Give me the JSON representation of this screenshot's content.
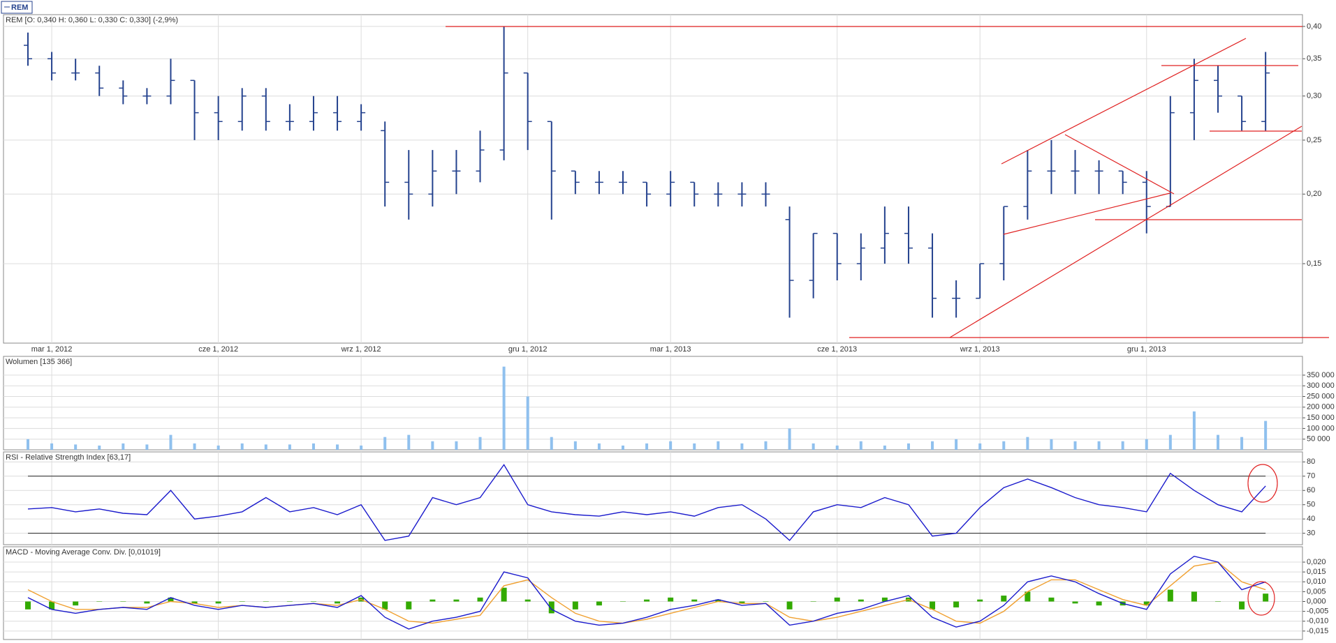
{
  "tab": "REM",
  "chart_data": [
    {
      "type": "ohlc",
      "title": "REM [O: 0,340  H: 0,360  L: 0,330  C: 0,330] (-2,9%)",
      "categories": [
        null,
        "mar 1, 2012",
        null,
        null,
        null,
        null,
        null,
        null,
        "cze 1, 2012",
        null,
        null,
        null,
        null,
        null,
        "wrz 1, 2012",
        null,
        null,
        null,
        null,
        null,
        null,
        "gru 1, 2012",
        null,
        null,
        null,
        null,
        null,
        "mar 1, 2013",
        null,
        null,
        null,
        null,
        null,
        null,
        "cze 1, 2013",
        null,
        null,
        null,
        null,
        null,
        "wrz 1, 2013",
        null,
        null,
        null,
        null,
        null,
        null,
        "gru 1, 2013",
        null,
        null,
        null,
        null,
        null
      ],
      "open": [
        0.37,
        0.35,
        0.33,
        0.33,
        0.31,
        0.3,
        0.3,
        0.32,
        0.28,
        0.27,
        0.3,
        0.27,
        0.27,
        0.28,
        0.27,
        0.26,
        0.21,
        0.2,
        0.22,
        0.22,
        0.24,
        0.33,
        0.27,
        0.22,
        0.21,
        0.21,
        0.21,
        0.2,
        0.21,
        0.2,
        0.2,
        0.2,
        0.18,
        0.14,
        0.17,
        0.15,
        0.16,
        0.17,
        0.16,
        0.13,
        0.13,
        0.15,
        0.19,
        0.22,
        0.22,
        0.22,
        0.22,
        0.21,
        0.19,
        0.28,
        0.32,
        0.3,
        0.27
      ],
      "high": [
        0.39,
        0.36,
        0.35,
        0.34,
        0.32,
        0.31,
        0.35,
        0.32,
        0.3,
        0.31,
        0.31,
        0.29,
        0.3,
        0.3,
        0.29,
        0.27,
        0.24,
        0.24,
        0.24,
        0.26,
        0.4,
        0.33,
        0.27,
        0.22,
        0.22,
        0.22,
        0.21,
        0.22,
        0.21,
        0.21,
        0.21,
        0.21,
        0.19,
        0.17,
        0.17,
        0.17,
        0.19,
        0.19,
        0.17,
        0.14,
        0.15,
        0.19,
        0.24,
        0.25,
        0.24,
        0.23,
        0.22,
        0.22,
        0.3,
        0.35,
        0.34,
        0.3,
        0.36
      ],
      "low": [
        0.34,
        0.32,
        0.32,
        0.3,
        0.29,
        0.29,
        0.29,
        0.25,
        0.25,
        0.26,
        0.26,
        0.26,
        0.26,
        0.26,
        0.26,
        0.19,
        0.18,
        0.19,
        0.2,
        0.21,
        0.23,
        0.24,
        0.18,
        0.2,
        0.2,
        0.2,
        0.19,
        0.19,
        0.19,
        0.19,
        0.19,
        0.19,
        0.12,
        0.13,
        0.14,
        0.14,
        0.15,
        0.15,
        0.12,
        0.12,
        0.13,
        0.14,
        0.18,
        0.2,
        0.2,
        0.2,
        0.2,
        0.17,
        0.19,
        0.25,
        0.28,
        0.26,
        0.26
      ],
      "close": [
        0.35,
        0.33,
        0.33,
        0.31,
        0.3,
        0.3,
        0.32,
        0.28,
        0.27,
        0.3,
        0.27,
        0.27,
        0.28,
        0.27,
        0.28,
        0.21,
        0.2,
        0.22,
        0.22,
        0.24,
        0.33,
        0.27,
        0.22,
        0.21,
        0.21,
        0.21,
        0.2,
        0.21,
        0.2,
        0.2,
        0.2,
        0.2,
        0.14,
        0.17,
        0.15,
        0.16,
        0.17,
        0.16,
        0.13,
        0.13,
        0.15,
        0.19,
        0.22,
        0.22,
        0.22,
        0.22,
        0.21,
        0.19,
        0.28,
        0.32,
        0.3,
        0.27,
        0.33
      ],
      "color": "#24428e",
      "log": true,
      "ylim": [
        0.108,
        0.42
      ],
      "yticks": [
        {
          "value": 0.15,
          "label": "0,15"
        },
        {
          "value": 0.2,
          "label": "0,20"
        },
        {
          "value": 0.25,
          "label": "0,25"
        },
        {
          "value": 0.3,
          "label": "0,30"
        },
        {
          "value": 0.35,
          "label": "0,35"
        },
        {
          "value": 0.4,
          "label": "0,40"
        }
      ],
      "grid": true
    },
    {
      "type": "bar",
      "title": "Wolumen [135 366]",
      "values": [
        50000,
        30000,
        25000,
        20000,
        30000,
        25000,
        70000,
        30000,
        20000,
        30000,
        25000,
        25000,
        30000,
        25000,
        20000,
        60000,
        70000,
        40000,
        40000,
        60000,
        390000,
        250000,
        60000,
        40000,
        30000,
        20000,
        30000,
        40000,
        30000,
        40000,
        30000,
        40000,
        100000,
        30000,
        20000,
        40000,
        20000,
        30000,
        40000,
        50000,
        30000,
        40000,
        60000,
        50000,
        40000,
        40000,
        40000,
        50000,
        70000,
        180000,
        70000,
        60000,
        135366
      ],
      "color": "#8fc0ee",
      "ylim": [
        0,
        438000
      ],
      "yticks": [
        {
          "value": 50000,
          "label": "50 000"
        },
        {
          "value": 100000,
          "label": "100 000"
        },
        {
          "value": 150000,
          "label": "150 000"
        },
        {
          "value": 200000,
          "label": "200 000"
        },
        {
          "value": 250000,
          "label": "250 000"
        },
        {
          "value": 300000,
          "label": "300 000"
        },
        {
          "value": 350000,
          "label": "350 000"
        }
      ],
      "grid": true
    },
    {
      "type": "line",
      "title": "RSI - Relative Strength Index [63,17]",
      "values": [
        47,
        48,
        45,
        47,
        44,
        43,
        60,
        40,
        42,
        45,
        55,
        45,
        48,
        43,
        50,
        25,
        28,
        55,
        50,
        55,
        78,
        50,
        45,
        43,
        42,
        45,
        43,
        45,
        42,
        48,
        50,
        40,
        25,
        45,
        50,
        48,
        55,
        50,
        28,
        30,
        48,
        62,
        68,
        62,
        55,
        50,
        48,
        45,
        72,
        60,
        50,
        45,
        63.17
      ],
      "color": "#1a1acc",
      "levels": [
        70,
        30
      ],
      "ylim": [
        22,
        87
      ],
      "yticks": [
        30,
        40,
        50,
        60,
        70,
        80
      ],
      "grid": true
    },
    {
      "type": "line",
      "title": "MACD - Moving Average Conv. Div. [0,01019]",
      "series": [
        {
          "style": "bar",
          "color": "#33aa00",
          "values": [
            -0.004,
            -0.004,
            -0.002,
            0,
            0,
            -0.001,
            0.002,
            -0.001,
            -0.001,
            0,
            0,
            0,
            0,
            -0.001,
            0.002,
            -0.004,
            -0.004,
            0.001,
            0.001,
            0.002,
            0.007,
            0.001,
            -0.006,
            -0.004,
            -0.002,
            0,
            0.001,
            0.002,
            0.001,
            0.001,
            -0.001,
            0,
            -0.004,
            0,
            0.002,
            0.001,
            0.002,
            0.002,
            -0.004,
            -0.003,
            0.001,
            0.003,
            0.005,
            0.002,
            -0.001,
            -0.002,
            -0.002,
            -0.002,
            0.006,
            0.005,
            0,
            -0.004,
            0.004
          ]
        },
        {
          "style": "line",
          "color": "#f0a030",
          "values": [
            0.006,
            0.0,
            -0.004,
            -0.004,
            -0.003,
            -0.003,
            0.0,
            -0.001,
            -0.003,
            -0.002,
            -0.003,
            -0.002,
            -0.001,
            -0.002,
            0.001,
            -0.004,
            -0.01,
            -0.011,
            -0.009,
            -0.007,
            0.008,
            0.011,
            0.002,
            -0.006,
            -0.01,
            -0.011,
            -0.009,
            -0.006,
            -0.003,
            0.0,
            -0.001,
            -0.001,
            -0.008,
            -0.01,
            -0.008,
            -0.005,
            -0.002,
            0.001,
            -0.004,
            -0.01,
            -0.011,
            -0.005,
            0.005,
            0.011,
            0.011,
            0.006,
            0.001,
            -0.002,
            0.008,
            0.018,
            0.02,
            0.01,
            0.006
          ]
        },
        {
          "style": "line",
          "color": "#1a1acc",
          "values": [
            0.002,
            -0.004,
            -0.006,
            -0.004,
            -0.003,
            -0.004,
            0.002,
            -0.002,
            -0.004,
            -0.002,
            -0.003,
            -0.002,
            -0.001,
            -0.003,
            0.003,
            -0.008,
            -0.014,
            -0.01,
            -0.008,
            -0.005,
            0.015,
            0.012,
            -0.004,
            -0.01,
            -0.012,
            -0.011,
            -0.008,
            -0.004,
            -0.002,
            0.001,
            -0.002,
            -0.001,
            -0.012,
            -0.01,
            -0.006,
            -0.004,
            0.0,
            0.003,
            -0.008,
            -0.013,
            -0.01,
            -0.002,
            0.01,
            0.013,
            0.01,
            0.004,
            -0.001,
            -0.004,
            0.014,
            0.023,
            0.02,
            0.006,
            0.01
          ]
        }
      ],
      "ylim": [
        -0.0193,
        0.0278
      ],
      "yticks": [
        {
          "value": -0.015,
          "label": "-0,015"
        },
        {
          "value": -0.01,
          "label": "-0,010"
        },
        {
          "value": -0.005,
          "label": "-0,005"
        },
        {
          "value": 0,
          "label": "0,000"
        },
        {
          "value": 0.005,
          "label": "0,005"
        },
        {
          "value": 0.01,
          "label": "0,010"
        },
        {
          "value": 0.015,
          "label": "0,015"
        },
        {
          "value": 0.02,
          "label": "0,020"
        }
      ],
      "grid": true
    }
  ]
}
